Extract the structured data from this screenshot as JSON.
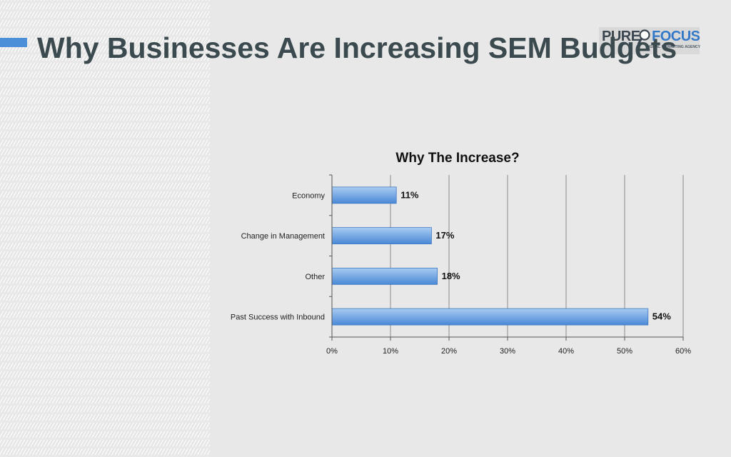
{
  "slide": {
    "title": "Why Businesses Are Increasing SEM Budgets"
  },
  "logo": {
    "word_left": "PURE",
    "word_right": "FOCUS",
    "tagline": "DIGITAL MARKETING AGENCY",
    "mark_icon": "magnifying-glass-icon"
  },
  "colors": {
    "accent": "#4a8fd8",
    "title": "#3b4a4f",
    "bar_top": "#a9ccf2",
    "bar_bottom": "#4a88d6",
    "gridline": "#8a8a8a"
  },
  "chart_data": {
    "type": "bar",
    "orientation": "horizontal",
    "title": "Why The Increase?",
    "categories": [
      "Economy",
      "Change in Management",
      "Other",
      "Past Success with Inbound"
    ],
    "values": [
      11,
      17,
      18,
      54
    ],
    "data_labels": [
      "11%",
      "17%",
      "18%",
      "54%"
    ],
    "xlabel": "",
    "ylabel": "",
    "xlim": [
      0,
      60
    ],
    "x_ticks": [
      0,
      10,
      20,
      30,
      40,
      50,
      60
    ],
    "x_tick_labels": [
      "0%",
      "10%",
      "20%",
      "30%",
      "40%",
      "50%",
      "60%"
    ],
    "grid": true,
    "legend": "none"
  }
}
